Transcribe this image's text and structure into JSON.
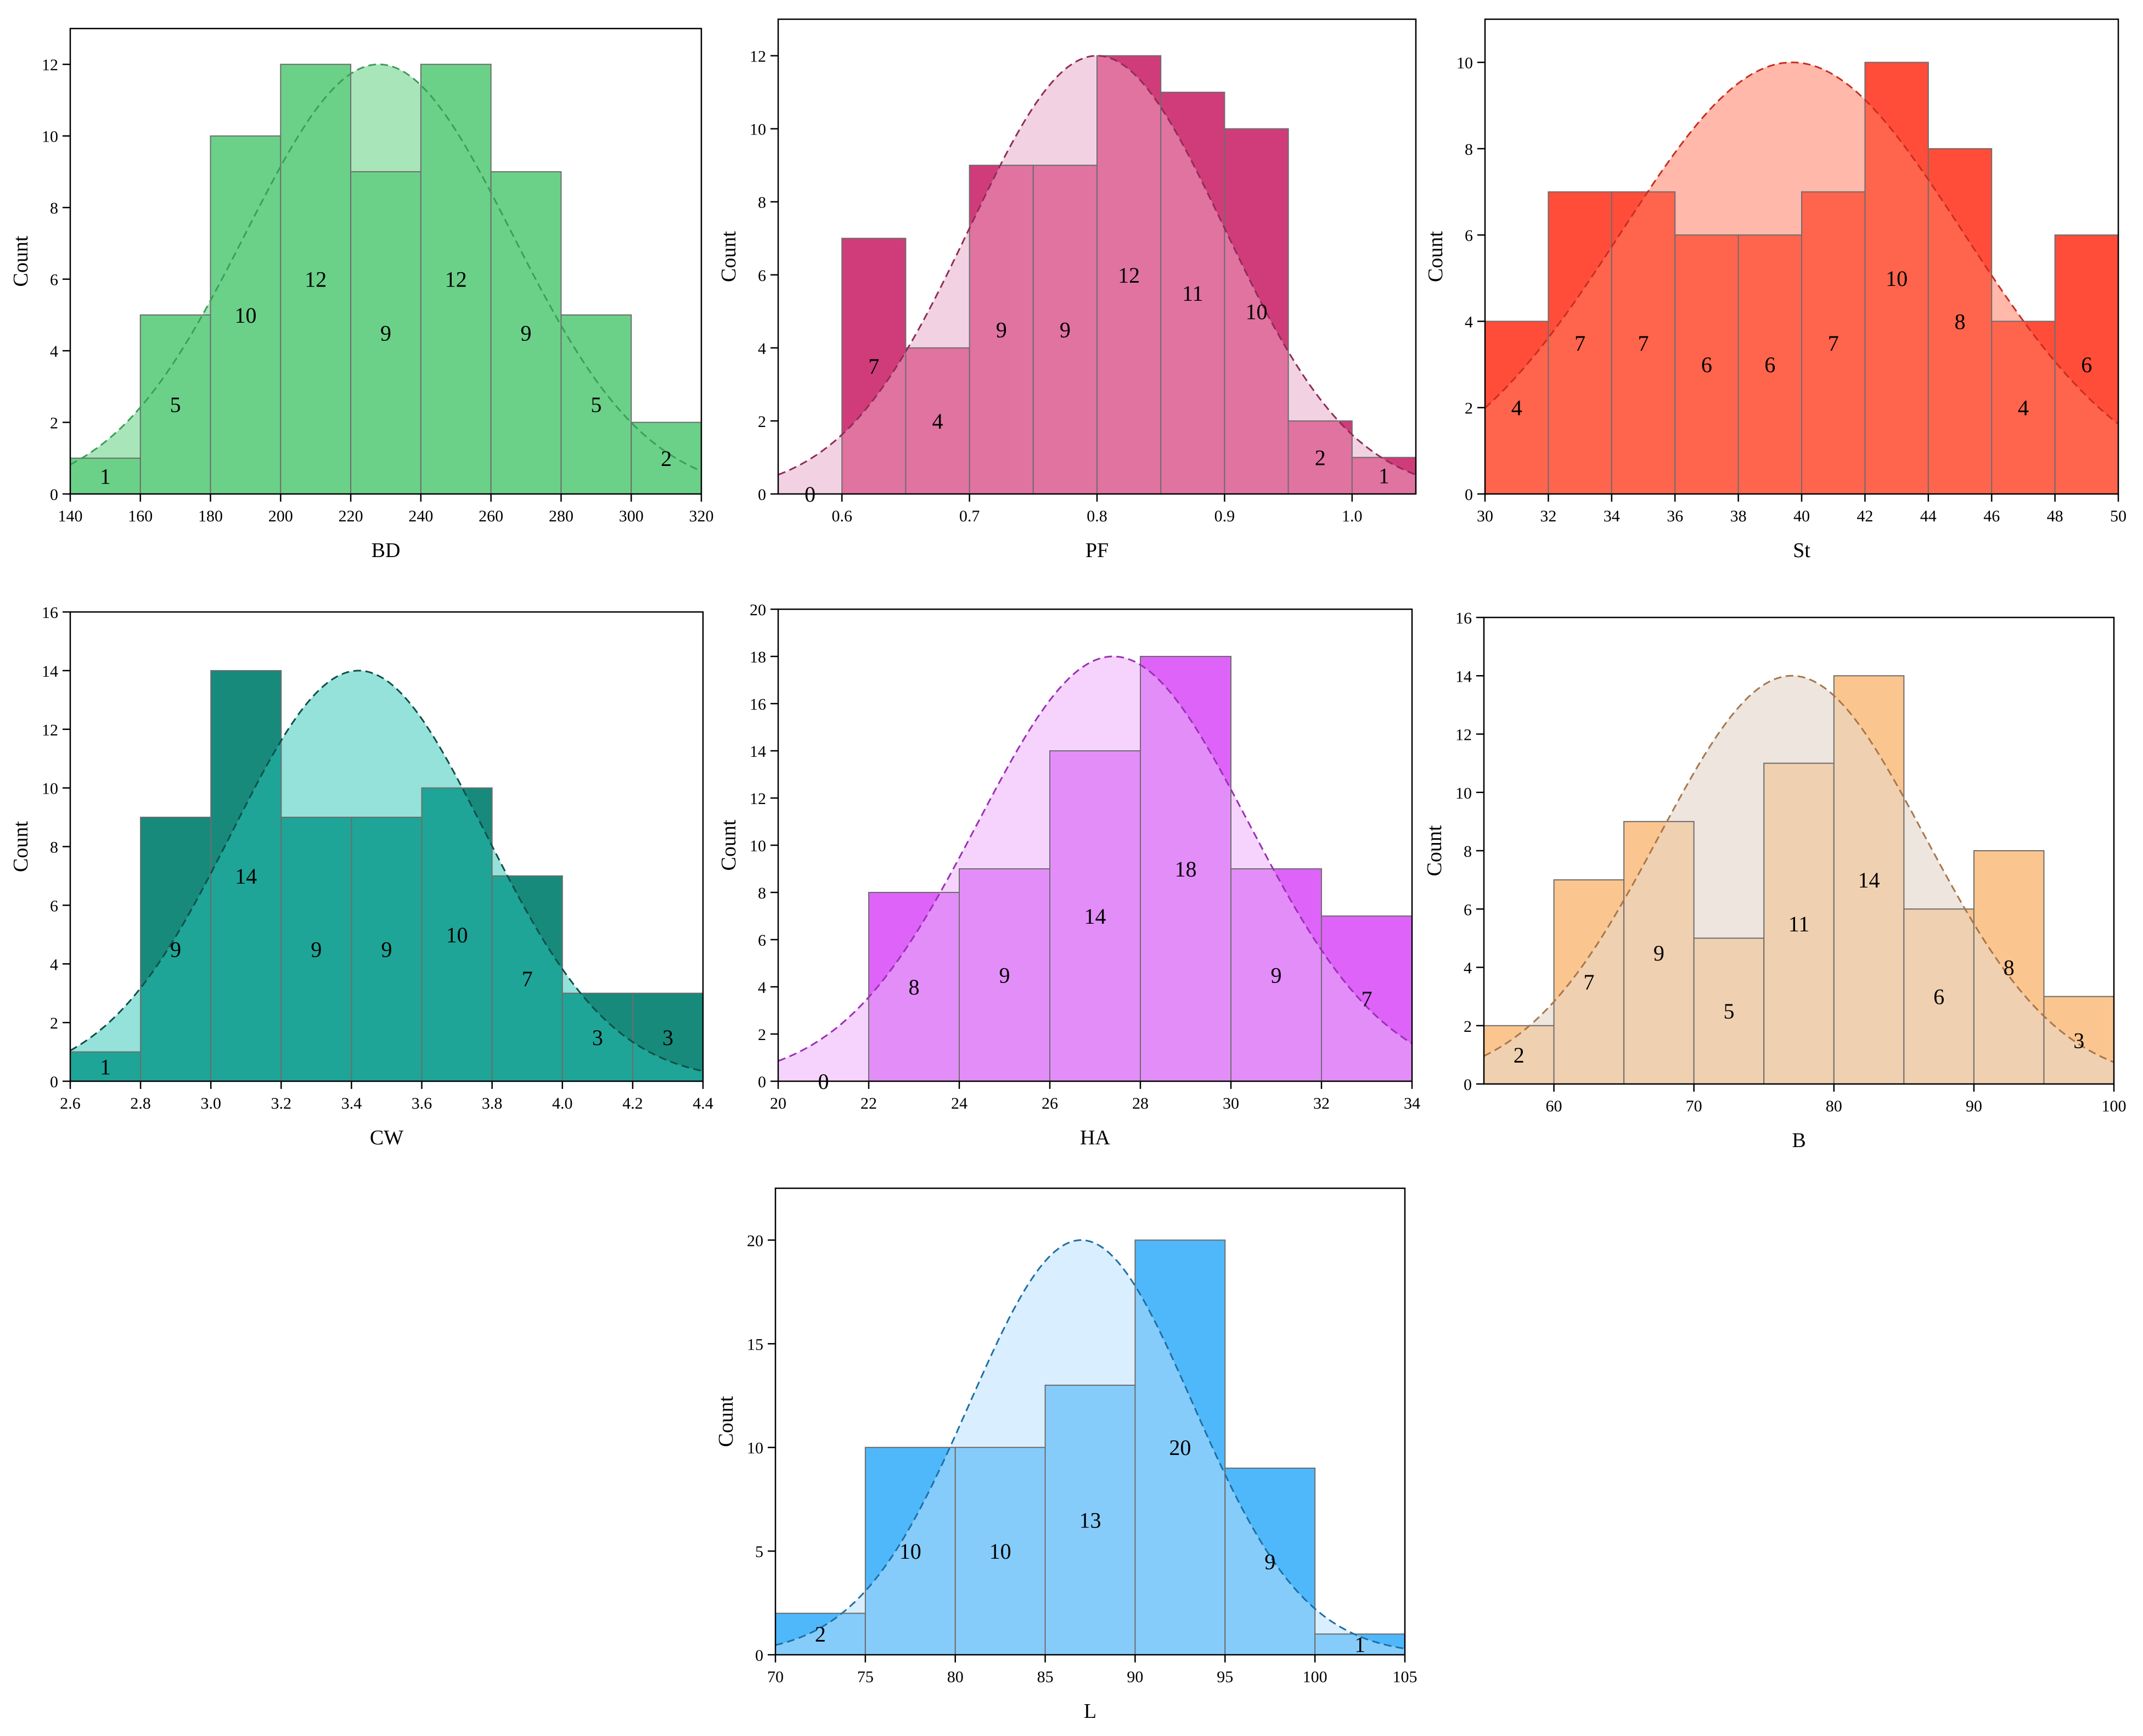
{
  "figure": {
    "ylabel_common": "Count"
  },
  "chart_data": [
    {
      "id": "bd",
      "type": "bar",
      "title": "",
      "xlabel": "BD",
      "ylabel": "Count",
      "xlim": [
        140,
        320
      ],
      "ylim": [
        0,
        13
      ],
      "xticks": [
        140,
        160,
        180,
        200,
        220,
        240,
        260,
        280,
        300,
        320
      ],
      "yticks": [
        0,
        2,
        4,
        6,
        8,
        10,
        12
      ],
      "bin_edges": [
        140,
        160,
        180,
        200,
        220,
        240,
        260,
        280,
        300,
        320
      ],
      "values": [
        1,
        5,
        10,
        12,
        9,
        12,
        9,
        5,
        2
      ],
      "normal_curve": {
        "mean": 228,
        "peak": 12,
        "sd": 38
      },
      "colors": {
        "bar": "#6bd188",
        "dark": "#6bd188",
        "light": "#a8e6b9",
        "line": "#3f9c5a"
      }
    },
    {
      "id": "pf",
      "type": "bar",
      "title": "",
      "xlabel": "PF",
      "ylabel": "Count",
      "xlim": [
        0.55,
        1.05
      ],
      "ylim": [
        0,
        13
      ],
      "xticks": [
        0.6,
        0.7,
        0.8,
        0.9,
        1.0
      ],
      "xtick_labels": [
        "0.6",
        "0.7",
        "0.8",
        "0.9",
        "1.0"
      ],
      "yticks": [
        0,
        2,
        4,
        6,
        8,
        10,
        12
      ],
      "bin_edges": [
        0.55,
        0.6,
        0.65,
        0.7,
        0.75,
        0.8,
        0.85,
        0.9,
        0.95,
        1.0,
        1.05
      ],
      "values": [
        0,
        7,
        4,
        9,
        9,
        12,
        11,
        10,
        2,
        1
      ],
      "normal_curve": {
        "mean": 0.8,
        "peak": 12,
        "sd": 0.1
      },
      "colors": {
        "bar": "#e073a0",
        "dark": "#d03c7a",
        "light": "#f2d2e2",
        "line": "#8f2c57"
      }
    },
    {
      "id": "st",
      "type": "bar",
      "title": "",
      "xlabel": "St",
      "ylabel": "Count",
      "xlim": [
        30,
        50
      ],
      "ylim": [
        0,
        11
      ],
      "xticks": [
        30,
        32,
        34,
        36,
        38,
        40,
        42,
        44,
        46,
        48,
        50
      ],
      "yticks": [
        0,
        2,
        4,
        6,
        8,
        10
      ],
      "bin_edges": [
        30,
        32,
        34,
        36,
        38,
        40,
        42,
        44,
        46,
        48,
        50
      ],
      "values": [
        4,
        7,
        7,
        6,
        6,
        7,
        10,
        8,
        4,
        6
      ],
      "normal_curve": {
        "mean": 39.7,
        "peak": 10,
        "sd": 5.4
      },
      "colors": {
        "bar": "#ff644d",
        "dark": "#ff4d3a",
        "light": "#ffb8aa",
        "line": "#c92e1f"
      }
    },
    {
      "id": "cw",
      "type": "bar",
      "title": "",
      "xlabel": "CW",
      "ylabel": "Count",
      "xlim": [
        2.6,
        4.4
      ],
      "ylim": [
        0,
        16
      ],
      "xticks": [
        2.6,
        2.8,
        3.0,
        3.2,
        3.4,
        3.6,
        3.8,
        4.0,
        4.2,
        4.4
      ],
      "xtick_labels": [
        "2.6",
        "2.8",
        "3.0",
        "3.2",
        "3.4",
        "3.6",
        "3.8",
        "4.0",
        "4.2",
        "4.4"
      ],
      "yticks": [
        0,
        2,
        4,
        6,
        8,
        10,
        12,
        14,
        16
      ],
      "bin_edges": [
        2.6,
        2.8,
        3.0,
        3.2,
        3.4,
        3.6,
        3.8,
        4.0,
        4.2,
        4.4
      ],
      "values": [
        1,
        9,
        14,
        9,
        9,
        10,
        7,
        3,
        3
      ],
      "normal_curve": {
        "mean": 3.42,
        "peak": 14,
        "sd": 0.36
      },
      "colors": {
        "bar": "#1ea597",
        "dark": "#178a7c",
        "light": "#94e2d9",
        "line": "#0f4f48"
      }
    },
    {
      "id": "ha",
      "type": "bar",
      "title": "",
      "xlabel": "HA",
      "ylabel": "Count",
      "xlim": [
        20,
        34
      ],
      "ylim": [
        0,
        20
      ],
      "xticks": [
        20,
        22,
        24,
        26,
        28,
        30,
        32,
        34
      ],
      "yticks": [
        0,
        2,
        4,
        6,
        8,
        10,
        12,
        14,
        16,
        18,
        20
      ],
      "bin_edges": [
        20,
        22,
        24,
        26,
        28,
        30,
        32,
        34
      ],
      "values": [
        0,
        8,
        9,
        14,
        18,
        9,
        7
      ],
      "normal_curve": {
        "mean": 27.4,
        "peak": 18,
        "sd": 3.0
      },
      "colors": {
        "bar": "#e38df9",
        "dark": "#de63f9",
        "light": "#f5d3fc",
        "line": "#9b2fb5"
      }
    },
    {
      "id": "b",
      "type": "bar",
      "title": "",
      "xlabel": "B",
      "ylabel": "Count",
      "xlim": [
        55,
        100
      ],
      "ylim": [
        0,
        16
      ],
      "xticks": [
        60,
        70,
        80,
        90,
        100
      ],
      "yticks": [
        0,
        2,
        4,
        6,
        8,
        10,
        12,
        14,
        16
      ],
      "bin_edges": [
        55,
        60,
        65,
        70,
        75,
        80,
        85,
        90,
        95,
        100
      ],
      "values": [
        2,
        7,
        9,
        5,
        11,
        14,
        6,
        8,
        3
      ],
      "normal_curve": {
        "mean": 77,
        "peak": 14,
        "sd": 9.5
      },
      "colors": {
        "bar": "#efd0b0",
        "dark": "#fbc58f",
        "light": "#ede5de",
        "line": "#a8764a"
      }
    },
    {
      "id": "l",
      "type": "bar",
      "title": "",
      "xlabel": "L",
      "ylabel": "Count",
      "xlim": [
        70,
        105
      ],
      "ylim": [
        0,
        22.5
      ],
      "xticks": [
        70,
        75,
        80,
        85,
        90,
        95,
        100,
        105
      ],
      "yticks": [
        0,
        5,
        10,
        15,
        20
      ],
      "bin_edges": [
        70,
        75,
        80,
        85,
        90,
        95,
        100,
        105
      ],
      "values": [
        2,
        10,
        10,
        13,
        20,
        9,
        1
      ],
      "normal_curve": {
        "mean": 87,
        "peak": 20,
        "sd": 6.2
      },
      "colors": {
        "bar": "#86ccfb",
        "dark": "#4fb8fb",
        "light": "#d9efff",
        "line": "#1f6fa3"
      }
    }
  ]
}
